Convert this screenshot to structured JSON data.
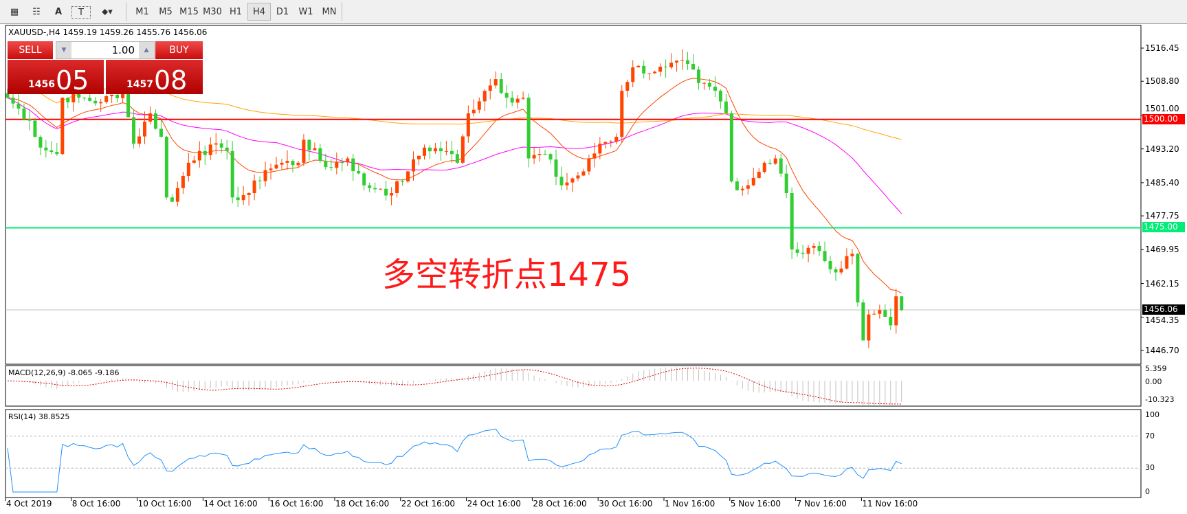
{
  "toolbar": {
    "tools": [
      {
        "icon": "grid-e-icon"
      },
      {
        "icon": "fibo-f-icon"
      },
      {
        "icon": "text-a-icon",
        "label": "A"
      },
      {
        "icon": "text-label-icon",
        "label": "T"
      },
      {
        "icon": "arrows-dropdown-icon"
      }
    ],
    "timeframes": [
      "M1",
      "M5",
      "M15",
      "M30",
      "H1",
      "H4",
      "D1",
      "W1",
      "MN"
    ],
    "active_timeframe": "H4"
  },
  "chart": {
    "header": "XAUUSD-,H4  1459.19 1459.26 1455.76 1456.06",
    "annotation": "多空转折点1475",
    "trade_panel": {
      "sell_label": "SELL",
      "buy_label": "BUY",
      "lot": "1.00",
      "sell_big": "1456",
      "sell_small": "05",
      "buy_big": "1457",
      "buy_small": "08"
    },
    "colors": {
      "bull": "#ff4500",
      "bear": "#32cd32",
      "ma_fast": "#ff4500",
      "ma_mid": "#ff00ff",
      "ma_slow": "#ffa500",
      "line_1500": "#ff0000",
      "line_1475": "#00ff7f"
    }
  },
  "chart_data": {
    "type": "candlestick",
    "price_ticks": [
      "1516.45",
      "1508.80",
      "1501.00",
      "1493.20",
      "1485.40",
      "1477.75",
      "1469.95",
      "1462.15",
      "1454.35",
      "1446.70"
    ],
    "ylim": [
      1446.7,
      1516.45
    ],
    "hlines": [
      {
        "value": 1500.0,
        "label": "1500.00"
      },
      {
        "value": 1475.0,
        "label": "1475.00"
      },
      {
        "value": 1456.06,
        "label": "1456.06"
      }
    ],
    "last": {
      "open": 1459.19,
      "high": 1459.26,
      "low": 1455.76,
      "close": 1456.06
    },
    "close_path": [
      [
        0,
        1505
      ],
      [
        4,
        1499.7
      ],
      [
        6,
        1493.5
      ],
      [
        9,
        1492
      ],
      [
        10,
        1505
      ],
      [
        13,
        1505
      ],
      [
        17,
        1504
      ],
      [
        21,
        1506.6
      ],
      [
        23,
        1494.4
      ],
      [
        26,
        1501.4
      ],
      [
        28,
        1496
      ],
      [
        29,
        1482
      ],
      [
        30,
        1481
      ],
      [
        33,
        1490
      ],
      [
        35,
        1492.7
      ],
      [
        39,
        1493.5
      ],
      [
        40,
        1492.7
      ],
      [
        41,
        1482
      ],
      [
        44,
        1483
      ],
      [
        47,
        1488.3
      ],
      [
        50,
        1490
      ],
      [
        53,
        1490
      ],
      [
        54,
        1495.3
      ],
      [
        58,
        1489
      ],
      [
        62,
        1491
      ],
      [
        65,
        1484.8
      ],
      [
        68,
        1484
      ],
      [
        70,
        1483
      ],
      [
        73,
        1488
      ],
      [
        76,
        1493.5
      ],
      [
        80,
        1492.7
      ],
      [
        82,
        1490
      ],
      [
        84,
        1501.4
      ],
      [
        87,
        1506.6
      ],
      [
        89,
        1509.3
      ],
      [
        91,
        1505
      ],
      [
        94,
        1505
      ],
      [
        95,
        1491
      ],
      [
        98,
        1492
      ],
      [
        101,
        1484.8
      ],
      [
        105,
        1488
      ],
      [
        108,
        1494.4
      ],
      [
        111,
        1496
      ],
      [
        112,
        1506.6
      ],
      [
        114,
        1512
      ],
      [
        118,
        1511
      ],
      [
        120,
        1512
      ],
      [
        124,
        1512.8
      ],
      [
        126,
        1508.4
      ],
      [
        129,
        1506.6
      ],
      [
        131,
        1501.4
      ],
      [
        132,
        1485.7
      ],
      [
        134,
        1484
      ],
      [
        136,
        1486.5
      ],
      [
        138,
        1490
      ],
      [
        140,
        1491
      ],
      [
        141,
        1487.5
      ],
      [
        142,
        1483
      ],
      [
        143,
        1470
      ],
      [
        145,
        1469
      ],
      [
        147,
        1470.8
      ],
      [
        149,
        1467.3
      ],
      [
        151,
        1464.7
      ],
      [
        152,
        1465.6
      ],
      [
        154,
        1469
      ],
      [
        156,
        1449
      ],
      [
        157,
        1455
      ],
      [
        159,
        1456
      ],
      [
        161,
        1452.5
      ],
      [
        162,
        1459.19
      ],
      [
        163,
        1456.06
      ]
    ],
    "macd": {
      "label": "MACD(12,26,9) -8.065 -9.186",
      "ticks": [
        "5.359",
        "0.00",
        "-10.323"
      ],
      "ylim": [
        -10.323,
        5.359
      ]
    },
    "rsi": {
      "label": "RSI(14) 38.8525",
      "ticks": [
        "100",
        "70",
        "30",
        "0"
      ],
      "levels": [
        30,
        70
      ]
    },
    "dates": [
      "4 Oct 2019",
      "8 Oct 16:00",
      "10 Oct 16:00",
      "14 Oct 16:00",
      "16 Oct 16:00",
      "18 Oct 16:00",
      "22 Oct 16:00",
      "24 Oct 16:00",
      "28 Oct 16:00",
      "30 Oct 16:00",
      "1 Nov 16:00",
      "5 Nov 16:00",
      "7 Nov 16:00",
      "11 Nov 16:00"
    ]
  }
}
